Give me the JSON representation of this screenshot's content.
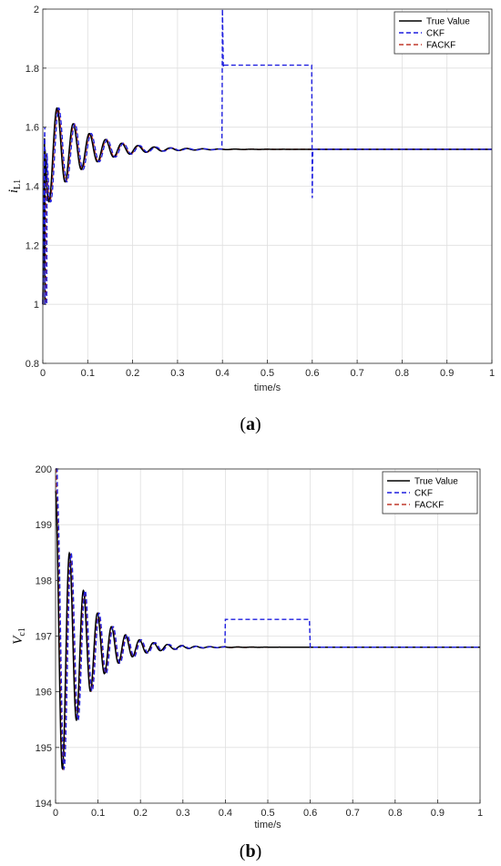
{
  "chart_data": [
    {
      "type": "line",
      "panel": "a",
      "caption": "(a)",
      "xlabel": "time/s",
      "ylabel_main": "i",
      "ylabel_sub": "L1",
      "xlim": [
        0,
        1
      ],
      "ylim": [
        0.8,
        2
      ],
      "xticks": [
        0,
        0.1,
        0.2,
        0.3,
        0.4,
        0.5,
        0.6,
        0.7,
        0.8,
        0.9,
        1
      ],
      "xtick_labels": [
        "0",
        "0.1",
        "0.2",
        "0.3",
        "0.4",
        "0.5",
        "0.6",
        "0.7",
        "0.8",
        "0.9",
        "1"
      ],
      "yticks": [
        0.8,
        1,
        1.2,
        1.4,
        1.6,
        1.8,
        2
      ],
      "ytick_labels": [
        "0.8",
        "1",
        "1.2",
        "1.4",
        "1.6",
        "1.8",
        "2"
      ],
      "grid": true,
      "legend_position": "top-right",
      "steady_value": 1.525,
      "osc": {
        "amplitude": 0.2,
        "period": 0.036,
        "decay_time": 0.075,
        "start": 0.005
      },
      "series": [
        {
          "name": "True Value",
          "color": "#000000",
          "dash": "solid",
          "x": [
            0,
            0.004
          ],
          "y": [
            1.0,
            1.6
          ],
          "oscillation": true,
          "oscillation_offset": 0
        },
        {
          "name": "CKF",
          "color": "#1f1fdf",
          "dash": "dashed",
          "x": [
            0,
            0.004,
            0.399,
            0.4,
            0.402,
            0.404,
            0.598,
            0.599,
            0.6,
            0.601
          ],
          "y": [
            1.0,
            1.6,
            1.525,
            2.0,
            1.8,
            1.81,
            1.81,
            1.81,
            1.36,
            1.525
          ],
          "oscillation": true,
          "oscillation_offset": 0.004
        },
        {
          "name": "FACKF",
          "color": "#c0392b",
          "dash": "dashed",
          "x": [
            0,
            0.004
          ],
          "y": [
            1.0,
            1.6
          ],
          "oscillation": true,
          "oscillation_offset": 0.002
        }
      ]
    },
    {
      "type": "line",
      "panel": "b",
      "caption": "(b)",
      "xlabel": "time/s",
      "ylabel_main": "V",
      "ylabel_sub": "c1",
      "xlim": [
        0,
        1
      ],
      "ylim": [
        194,
        200
      ],
      "xticks": [
        0,
        0.1,
        0.2,
        0.3,
        0.4,
        0.5,
        0.6,
        0.7,
        0.8,
        0.9,
        1
      ],
      "xtick_labels": [
        "0",
        "0.1",
        "0.2",
        "0.3",
        "0.4",
        "0.5",
        "0.6",
        "0.7",
        "0.8",
        "0.9",
        "1"
      ],
      "yticks": [
        194,
        195,
        196,
        197,
        198,
        199,
        200
      ],
      "ytick_labels": [
        "194",
        "195",
        "196",
        "197",
        "198",
        "199",
        "200"
      ],
      "grid": true,
      "legend_position": "top-right",
      "steady_value": 196.8,
      "osc": {
        "amplitude": 2.8,
        "period": 0.033,
        "decay_time": 0.065,
        "start": 0.0
      },
      "series": [
        {
          "name": "True Value",
          "color": "#000000",
          "dash": "solid",
          "x": [
            0
          ],
          "y": [
            200
          ],
          "oscillation": true,
          "oscillation_offset": 0
        },
        {
          "name": "CKF",
          "color": "#1f1fdf",
          "dash": "dashed",
          "x": [
            0,
            0.399,
            0.4,
            0.402,
            0.598,
            0.6,
            0.601
          ],
          "y": [
            200,
            196.8,
            197.3,
            197.3,
            197.3,
            196.8,
            196.8
          ],
          "oscillation": true,
          "oscillation_offset": 0.004
        },
        {
          "name": "FACKF",
          "color": "#c0392b",
          "dash": "dashed",
          "x": [
            0
          ],
          "y": [
            200
          ],
          "oscillation": true,
          "oscillation_offset": 0.002
        }
      ]
    }
  ]
}
